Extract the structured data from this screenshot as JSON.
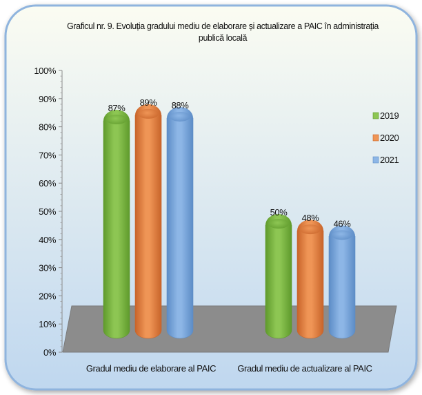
{
  "colors": {
    "panel_top": "#fbfcf2",
    "panel_bottom": "#bfd7ef",
    "panel_border": "#8fb4de",
    "floor": "#8c8c8c",
    "series": [
      "#8dc653",
      "#ef9556",
      "#8db6e6"
    ],
    "series_dark": [
      "#5f9a2c",
      "#c8642a",
      "#5c8cc6"
    ]
  },
  "chart_data": {
    "type": "bar",
    "title": "Graficul nr. 9. Evoluția gradului mediu de elaborare și actualizare a PAIC în administrația publică locală",
    "title_lines": [
      "Graficul nr. 9. Evoluția gradului mediu de elaborare și actualizare a PAIC în administrația",
      "publică locală"
    ],
    "categories": [
      "Gradul mediu de elaborare al PAIC",
      "Gradul mediu de actualizare al PAIC"
    ],
    "series": [
      {
        "name": "2019",
        "values": [
          87,
          50
        ],
        "labels": [
          "87%",
          "50%"
        ]
      },
      {
        "name": "2020",
        "values": [
          89,
          48
        ],
        "labels": [
          "89%",
          "48%"
        ]
      },
      {
        "name": "2021",
        "values": [
          88,
          46
        ],
        "labels": [
          "88%",
          "46%"
        ]
      }
    ],
    "y_ticks": [
      "0%",
      "10%",
      "20%",
      "30%",
      "40%",
      "50%",
      "60%",
      "70%",
      "80%",
      "90%",
      "100%"
    ],
    "ylim": [
      0,
      100
    ],
    "xlabel": "",
    "ylabel": "",
    "grid": false,
    "legend_position": "right",
    "style": "3d-cylinder"
  }
}
